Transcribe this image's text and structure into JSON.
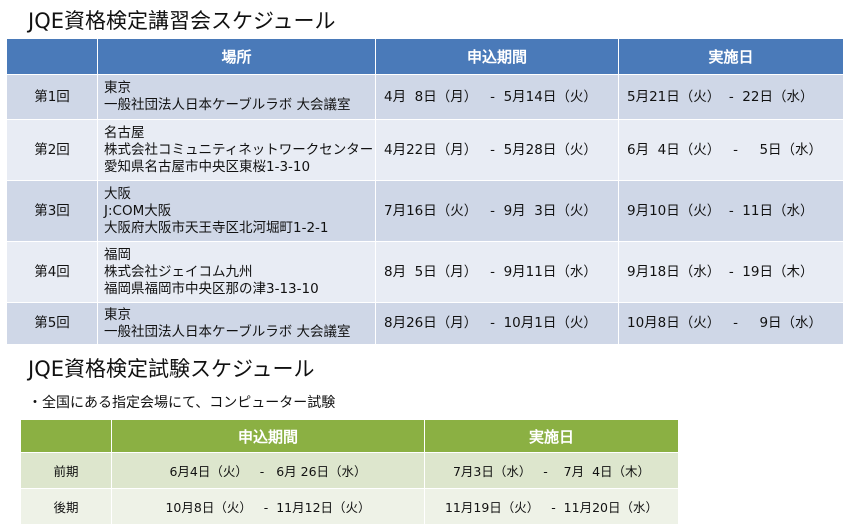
{
  "lecture_title": "JQE資格検定講習会スケジュール",
  "lecture_table": {
    "headers": [
      "",
      "場所",
      "申込期間",
      "実施日"
    ],
    "rows": [
      {
        "no": "第1回",
        "place": [
          "東京",
          "一般社団法人日本ケーブルラボ 大会議室"
        ],
        "apply": "4月  8日（月）   -  5月14日（火）",
        "date": "5月21日（火）  -  22日（水）"
      },
      {
        "no": "第2回",
        "place": [
          "名古屋",
          "株式会社コミュニティネットワークセンター",
          "愛知県名古屋市中央区東桜1-3-10"
        ],
        "apply": "4月22日（月）   -  5月28日（火）",
        "date": "6月  4日（火）   -     5日（水）"
      },
      {
        "no": "第3回",
        "place": [
          "大阪",
          "J:COM大阪",
          "大阪府大阪市天王寺区北河堀町1-2-1"
        ],
        "apply": "7月16日（火）   -  9月  3日（火）",
        "date": "9月10日（火）  -  11日（水）"
      },
      {
        "no": "第4回",
        "place": [
          "福岡",
          "株式会社ジェイコム九州",
          "福岡県福岡市中央区那の津3-13-10"
        ],
        "apply": "8月  5日（月）   -  9月11日（水）",
        "date": "9月18日（水）  -  19日（木）"
      },
      {
        "no": "第5回",
        "place": [
          "東京",
          "一般社団法人日本ケーブルラボ 大会議室"
        ],
        "apply": "8月26日（月）   -  10月1日（火）",
        "date": "10月8日（火）   -     9日（水）"
      }
    ]
  },
  "exam_title": "JQE資格検定試験スケジュール",
  "exam_note": "・全国にある指定会場にて、コンピューター試験",
  "exam_table": {
    "headers": [
      "",
      "申込期間",
      "実施日"
    ],
    "rows": [
      {
        "term": "前期",
        "apply": "6月4日（火）   -   6月 26日（水）",
        "date": "7月3日（水）   -    7月  4日（木）"
      },
      {
        "term": "後期",
        "apply": "10月8日（火）   -  11月12日（火）",
        "date": "11月19日（火）   -  11月20日（水）"
      }
    ]
  }
}
